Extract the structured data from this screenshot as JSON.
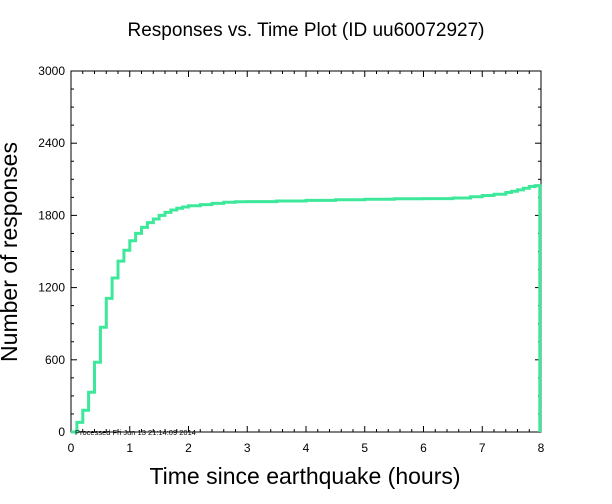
{
  "chart_data": {
    "type": "line",
    "title": "Responses vs. Time Plot (ID uu60072927)",
    "xlabel": "Time since earthquake (hours)",
    "ylabel": "Number of responses",
    "xlim": [
      0,
      8
    ],
    "ylim": [
      0,
      3000
    ],
    "x_ticks": [
      0,
      1,
      2,
      3,
      4,
      5,
      6,
      7,
      8
    ],
    "y_ticks": [
      0,
      600,
      1200,
      1800,
      2400,
      3000
    ],
    "grid": false,
    "step": true,
    "line_color": "#3ee89a",
    "annotation": "Processed Fri Jun 13 21:14:09 2014",
    "series": [
      {
        "x": [
          0.0,
          0.1,
          0.2,
          0.3,
          0.4,
          0.5,
          0.6,
          0.7,
          0.8,
          0.9,
          1.0,
          1.1,
          1.2,
          1.3,
          1.4,
          1.5,
          1.6,
          1.7,
          1.8,
          1.9,
          2.0,
          2.2,
          2.4,
          2.6,
          2.8,
          3.0,
          3.5,
          4.0,
          4.5,
          5.0,
          5.5,
          6.0,
          6.5,
          6.8,
          7.0,
          7.2,
          7.4,
          7.5,
          7.6,
          7.7,
          7.8,
          7.9,
          7.98,
          7.98
        ],
        "y": [
          0,
          80,
          180,
          330,
          580,
          870,
          1110,
          1280,
          1420,
          1510,
          1590,
          1650,
          1700,
          1740,
          1770,
          1800,
          1825,
          1845,
          1860,
          1870,
          1880,
          1890,
          1900,
          1910,
          1913,
          1915,
          1920,
          1925,
          1930,
          1935,
          1938,
          1940,
          1945,
          1955,
          1965,
          1975,
          1990,
          2000,
          2012,
          2025,
          2040,
          2048,
          2048,
          0
        ]
      }
    ]
  }
}
